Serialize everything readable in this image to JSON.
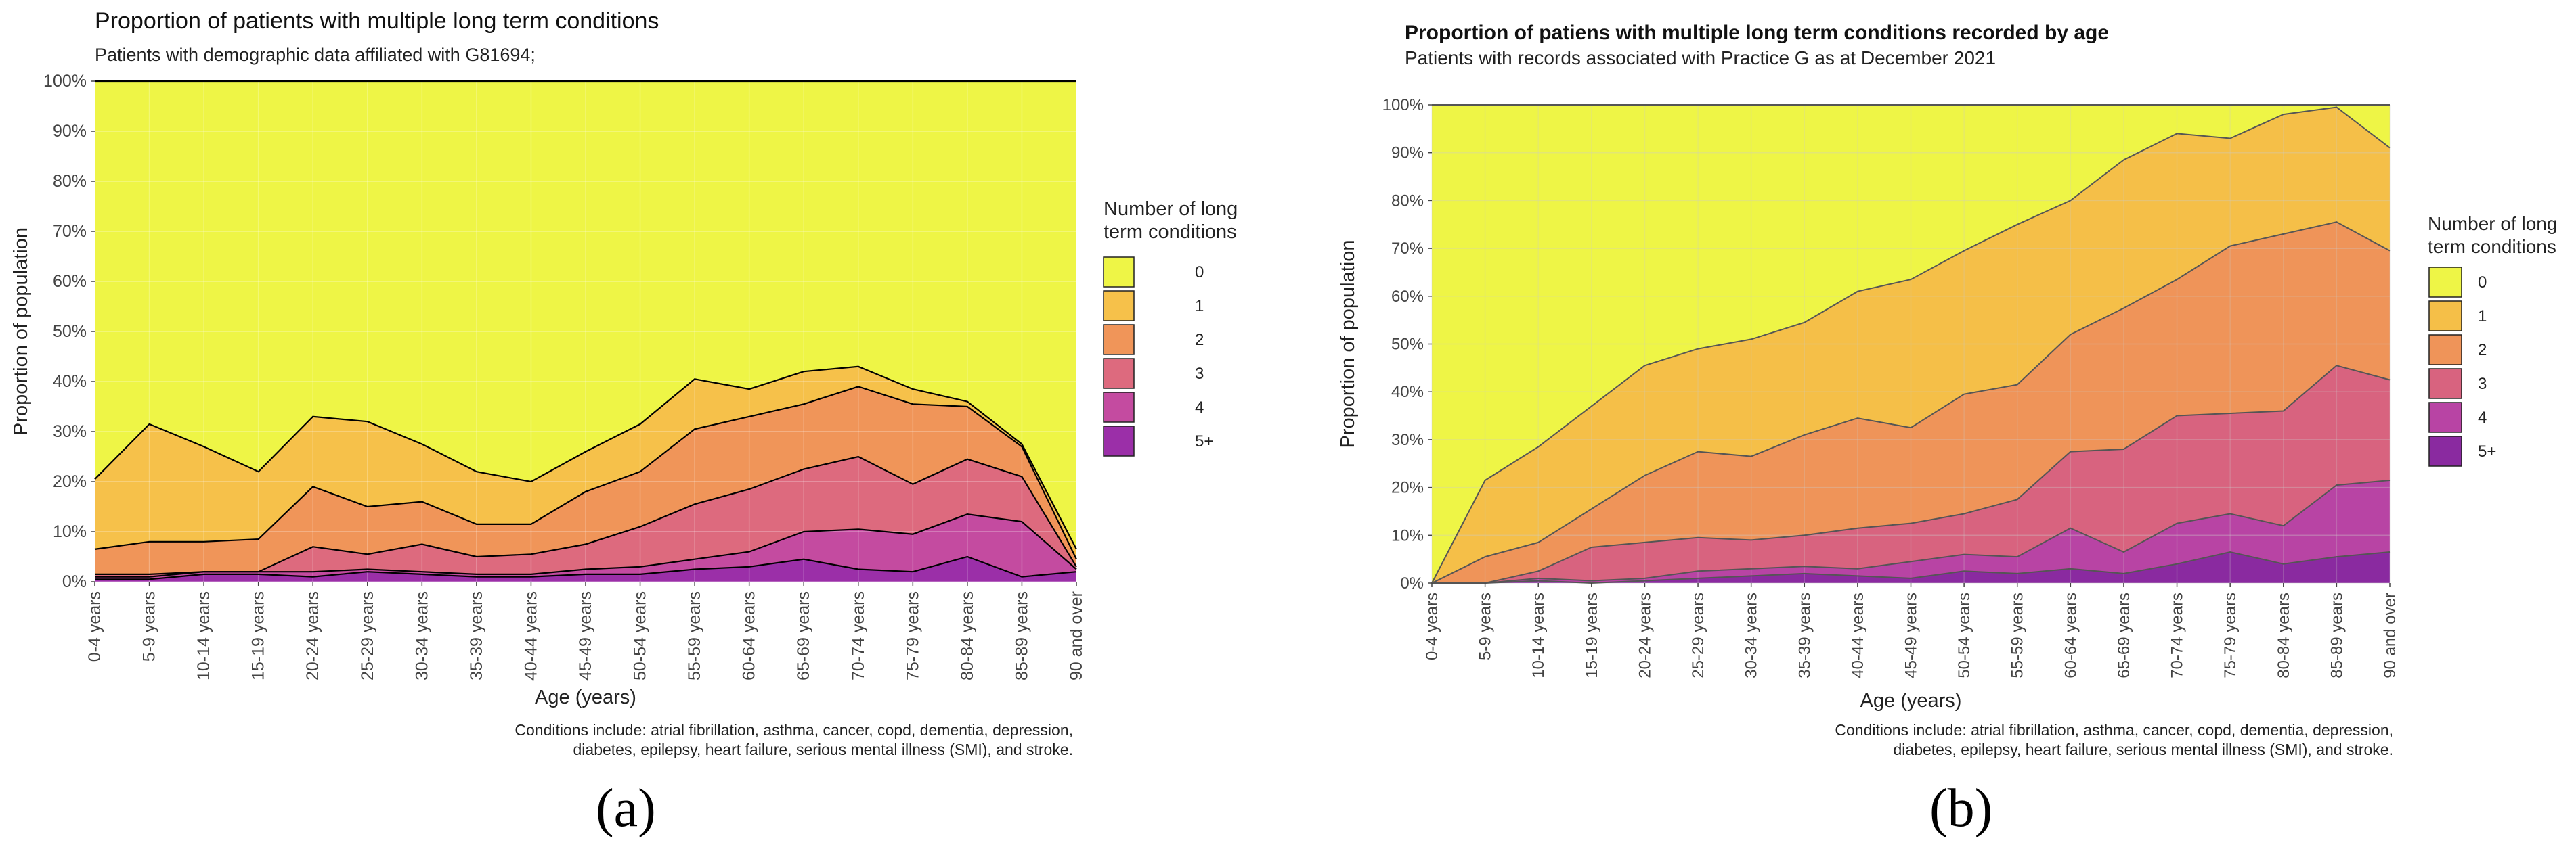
{
  "figure": {
    "panel_labels": [
      "(a)",
      "(b)"
    ]
  },
  "chart_data": [
    {
      "type": "area",
      "stacked": true,
      "title": "Proportion of patients with multiple long term conditions",
      "subtitle": "Patients with demographic data affiliated with G81694;",
      "xlabel": "Age (years)",
      "ylabel": "Proportion of population",
      "ylim": [
        0,
        100
      ],
      "yticks": [
        "0%",
        "10%",
        "20%",
        "30%",
        "40%",
        "50%",
        "60%",
        "70%",
        "80%",
        "90%",
        "100%"
      ],
      "categories": [
        "0-4 years",
        "5-9 years",
        "10-14 years",
        "15-19 years",
        "20-24 years",
        "25-29 years",
        "30-34 years",
        "35-39 years",
        "40-44 years",
        "45-49 years",
        "50-54 years",
        "55-59 years",
        "60-64 years",
        "65-69 years",
        "70-74 years",
        "75-79 years",
        "80-84 years",
        "85-89 years",
        "90 and over"
      ],
      "legend_title": "Number of long\nterm conditions",
      "legend_placement": "right",
      "grid": true,
      "caption": "Conditions include: atrial fibrillation, asthma, cancer, copd, dementia, depression,\ndiabetes, epilepsy, heart failure, serious mental illness (SMI), and stroke.",
      "cumulative_note": "values are cumulative top boundaries (%) of each band",
      "series": [
        {
          "name": "5+",
          "color": "#9b2fa8",
          "values": [
            0.5,
            0.5,
            1.5,
            1.5,
            1.0,
            2.0,
            1.5,
            1.0,
            1.0,
            1.5,
            1.5,
            2.5,
            3.0,
            4.5,
            2.5,
            2.0,
            5.0,
            1.0,
            2.0
          ]
        },
        {
          "name": "4",
          "color": "#c44ba0",
          "values": [
            1.0,
            1.0,
            2.0,
            2.0,
            2.0,
            2.5,
            2.0,
            1.5,
            1.5,
            2.5,
            3.0,
            4.5,
            6.0,
            10.0,
            10.5,
            9.5,
            13.5,
            12.0,
            2.5
          ]
        },
        {
          "name": "3",
          "color": "#dd6a7e",
          "values": [
            1.5,
            1.5,
            2.0,
            2.0,
            7.0,
            5.5,
            7.5,
            5.0,
            5.5,
            7.5,
            11.0,
            15.5,
            18.5,
            22.5,
            25.0,
            19.5,
            24.5,
            21.0,
            3.0
          ]
        },
        {
          "name": "2",
          "color": "#f09559",
          "values": [
            6.5,
            8.0,
            8.0,
            8.5,
            19.0,
            15.0,
            16.0,
            11.5,
            11.5,
            18.0,
            22.0,
            30.5,
            33.0,
            35.5,
            39.0,
            35.5,
            35.0,
            27.0,
            4.5
          ]
        },
        {
          "name": "1",
          "color": "#f6c14a",
          "values": [
            20.5,
            31.5,
            27.0,
            22.0,
            33.0,
            32.0,
            27.5,
            22.0,
            20.0,
            26.0,
            31.5,
            40.5,
            38.5,
            42.0,
            43.0,
            38.5,
            36.0,
            27.5,
            6.5
          ]
        },
        {
          "name": "0",
          "color": "#eef546",
          "values": [
            100,
            100,
            100,
            100,
            100,
            100,
            100,
            100,
            100,
            100,
            100,
            100,
            100,
            100,
            100,
            100,
            100,
            100,
            100
          ]
        }
      ]
    },
    {
      "type": "area",
      "stacked": true,
      "title": "Proportion of patiens with multiple long term conditions recorded by age",
      "subtitle": "Patients with records associated with Practice G as at December 2021",
      "xlabel": "Age (years)",
      "ylabel": "Proportion of population",
      "ylim": [
        0,
        100
      ],
      "yticks": [
        "0%",
        "10%",
        "20%",
        "30%",
        "40%",
        "50%",
        "60%",
        "70%",
        "80%",
        "90%",
        "100%"
      ],
      "categories": [
        "0-4 years",
        "5-9 years",
        "10-14 years",
        "15-19 years",
        "20-24 years",
        "25-29 years",
        "30-34 years",
        "35-39 years",
        "40-44 years",
        "45-49 years",
        "50-54 years",
        "55-59 years",
        "60-64 years",
        "65-69 years",
        "70-74 years",
        "75-79 years",
        "80-84 years",
        "85-89 years",
        "90 and over"
      ],
      "legend_title": "Number of long\nterm conditions",
      "legend_placement": "right",
      "grid": true,
      "caption": "Conditions include: atrial fibrillation, asthma, cancer, copd, dementia, depression,\ndiabetes, epilepsy, heart failure, serious mental illness (SMI), and stroke.",
      "cumulative_note": "values are cumulative top boundaries (%) of each band",
      "series": [
        {
          "name": "5+",
          "color": "#8a2aa0",
          "values": [
            0,
            0,
            0.5,
            0,
            0.5,
            1.0,
            1.5,
            2.0,
            1.5,
            1.0,
            2.5,
            2.0,
            3.0,
            2.0,
            4.0,
            6.5,
            4.0,
            5.5,
            6.5
          ]
        },
        {
          "name": "4",
          "color": "#b844a4",
          "values": [
            0,
            0,
            1.0,
            0.5,
            1.0,
            2.5,
            3.0,
            3.5,
            3.0,
            4.5,
            6.0,
            5.5,
            11.5,
            6.5,
            12.5,
            14.5,
            12.0,
            20.5,
            21.5
          ]
        },
        {
          "name": "3",
          "color": "#d8637f",
          "values": [
            0,
            0,
            2.5,
            7.5,
            8.5,
            9.5,
            9.0,
            10.0,
            11.5,
            12.5,
            14.5,
            17.5,
            27.5,
            28.0,
            35.0,
            35.5,
            36.0,
            45.5,
            42.5
          ]
        },
        {
          "name": "2",
          "color": "#ef9459",
          "values": [
            0,
            5.5,
            8.5,
            15.5,
            22.5,
            27.5,
            26.5,
            31.0,
            34.5,
            32.5,
            39.5,
            41.5,
            52.0,
            57.5,
            63.5,
            70.5,
            73.0,
            75.5,
            69.5
          ]
        },
        {
          "name": "1",
          "color": "#f5bf48",
          "values": [
            0,
            21.5,
            28.5,
            37.0,
            45.5,
            49.0,
            51.0,
            54.5,
            61.0,
            63.5,
            69.5,
            75.0,
            80.0,
            88.5,
            94.0,
            93.0,
            98.0,
            99.5,
            91.0
          ]
        },
        {
          "name": "0",
          "color": "#eef546",
          "values": [
            100,
            100,
            100,
            100,
            100,
            100,
            100,
            100,
            100,
            100,
            100,
            100,
            100,
            100,
            100,
            100,
            100,
            100,
            100
          ]
        }
      ]
    }
  ]
}
